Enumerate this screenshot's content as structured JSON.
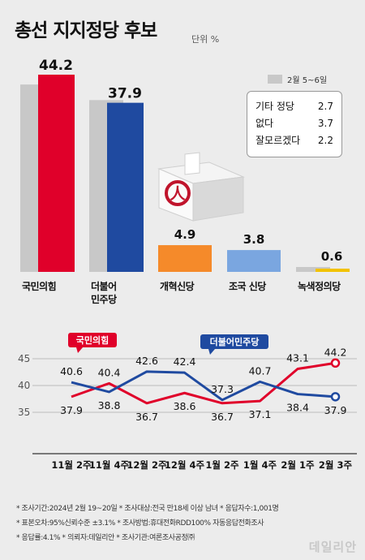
{
  "title": "총선 지지정당 후보",
  "unit": "단위 %",
  "legend_label": "2월 5~6일",
  "others": [
    {
      "label": "기타 정당",
      "value": "2.7"
    },
    {
      "label": "없다",
      "value": "3.7"
    },
    {
      "label": "잘모르겠다",
      "value": "2.2"
    }
  ],
  "colors": {
    "ppp": "#e0002a",
    "dp": "#1f4aa0",
    "reform": "#f58a2a",
    "rebuild": "#7aa6e0",
    "green": "#f2c200",
    "prev": "#c8c8c8"
  },
  "chart_data": [
    {
      "type": "bar",
      "categories": [
        "국민의힘",
        "더불어\n민주당",
        "개혁신당",
        "조국 신당",
        "녹색정의당"
      ],
      "series": [
        {
          "name": "2월 5~6일",
          "values": [
            42.0,
            38.5,
            null,
            null,
            1.0
          ]
        },
        {
          "values": [
            44.2,
            37.9,
            4.9,
            3.8,
            0.6
          ]
        }
      ],
      "value_labels": [
        "44.2",
        "37.9",
        "4.9",
        "3.8",
        "0.6"
      ],
      "ylim": [
        0,
        44.2
      ]
    },
    {
      "type": "line",
      "categories": [
        "11월 2주",
        "11월 4주",
        "12월 2주",
        "12월 4주",
        "1월 2주",
        "1월 4주",
        "2월 1주",
        "2월 3주"
      ],
      "y_ticks": [
        45,
        40,
        35
      ],
      "ylim": [
        34,
        46
      ],
      "series": [
        {
          "name": "국민의힘",
          "values": [
            37.9,
            40.4,
            36.7,
            38.6,
            36.7,
            37.1,
            43.1,
            44.2
          ]
        },
        {
          "name": "더불어민주당",
          "values": [
            40.6,
            38.8,
            42.6,
            42.4,
            37.3,
            40.7,
            38.4,
            37.9
          ]
        }
      ],
      "ppp_labels": [
        "37.9",
        "40.4",
        "36.7",
        "38.6",
        "36.7",
        "37.1",
        "43.1",
        "44.2"
      ],
      "dp_labels": [
        "40.6",
        "38.8",
        "42.6",
        "42.4",
        "37.3",
        "40.7",
        "38.4",
        "37.9"
      ],
      "grid": true
    }
  ],
  "footer": [
    "* 조사기간:2024년 2월 19~20일  * 조사대상:전국 만18세 이상 남녀  * 응답자수:1,001명",
    "* 표본오차:95%신뢰수준 ±3.1%  * 조사방법:휴대전화RDD100% 자동응답전화조사",
    "* 응답률:4.1%  * 의뢰자:데일리안  * 조사기관:여론조사공정㈜"
  ],
  "watermark": "데일리안"
}
